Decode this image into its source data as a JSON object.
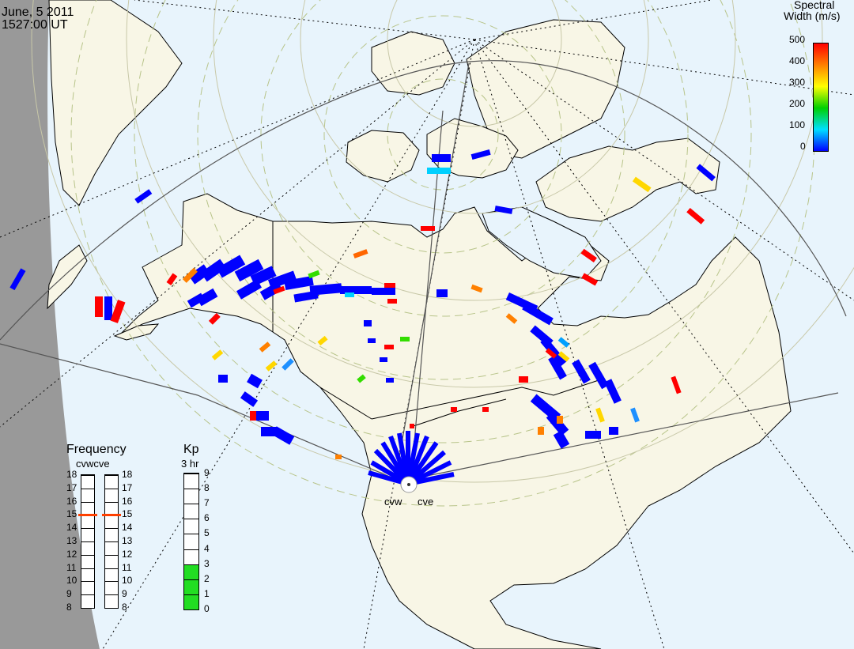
{
  "header": {
    "date": "June, 5 2011",
    "time": "1527:00 UT"
  },
  "colorbar": {
    "title_line1": "Spectral",
    "title_line2": "Width (m/s)",
    "ticks": [
      "500",
      "400",
      "300",
      "200",
      "100",
      "0"
    ],
    "colors": [
      "#ff0000",
      "#ff8000",
      "#ffff00",
      "#00d000",
      "#00e0ff",
      "#0000ff"
    ]
  },
  "frequency": {
    "title": "Frequency",
    "radar_labels": "cvwcve",
    "ticks": [
      "18",
      "17",
      "16",
      "15",
      "14",
      "13",
      "12",
      "11",
      "10",
      "9",
      "8"
    ],
    "cvw_value": 15,
    "cve_value": 15,
    "marker_color": "#ff4000"
  },
  "kp": {
    "title": "Kp",
    "subtitle": "3 hr",
    "ticks": [
      "9",
      "8",
      "7",
      "6",
      "5",
      "4",
      "3",
      "2",
      "1",
      "0"
    ],
    "value": 3,
    "fill_color": "#22dd22"
  },
  "stations": {
    "west": "cvw",
    "east": "cve"
  },
  "map_colors": {
    "ocean": "#e8f4fc",
    "land": "#f8f6e6",
    "night": "#999999",
    "scatter_main": "#0000ff"
  }
}
